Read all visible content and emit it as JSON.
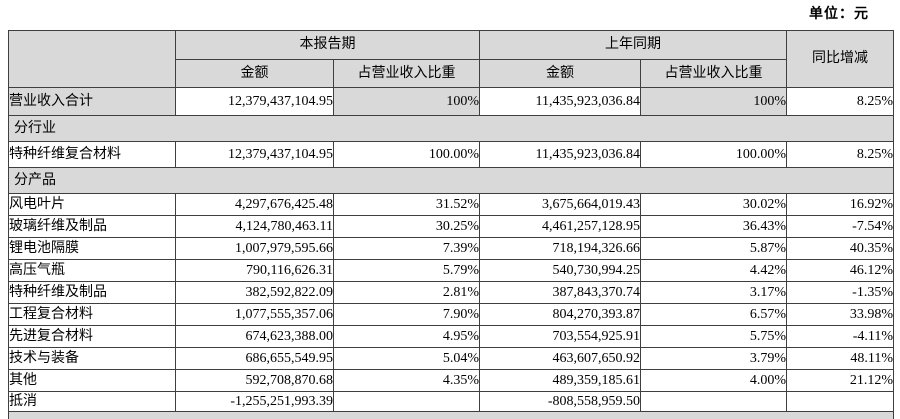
{
  "unit_label": "单位：元",
  "colors": {
    "header_bg": "#d9d9d9",
    "border": "#3f3f3f",
    "page_bg": "#ffffff"
  },
  "table": {
    "col_headers": {
      "corner": "",
      "current_period": "本报告期",
      "prior_period": "上年同期",
      "yoy": "同比增减",
      "amount": "金额",
      "revenue_share": "占营业收入比重"
    },
    "rows": [
      {
        "type": "data",
        "shaded_label": true,
        "shaded_pct": true,
        "label": "营业收入合计",
        "cells": [
          "12,379,437,104.95",
          "100%",
          "11,435,923,036.84",
          "100%",
          "8.25%"
        ]
      },
      {
        "type": "section",
        "label": "分行业"
      },
      {
        "type": "data",
        "label": "特种纤维复合材料",
        "cells": [
          "12,379,437,104.95",
          "100.00%",
          "11,435,923,036.84",
          "100.00%",
          "8.25%"
        ]
      },
      {
        "type": "section",
        "label": "分产品"
      },
      {
        "type": "data",
        "label": "风电叶片",
        "cells": [
          "4,297,676,425.48",
          "31.52%",
          "3,675,664,019.43",
          "30.02%",
          "16.92%"
        ]
      },
      {
        "type": "data",
        "label": "玻璃纤维及制品",
        "cells": [
          "4,124,780,463.11",
          "30.25%",
          "4,461,257,128.95",
          "36.43%",
          "-7.54%"
        ]
      },
      {
        "type": "data",
        "label": "锂电池隔膜",
        "cells": [
          "1,007,979,595.66",
          "7.39%",
          "718,194,326.66",
          "5.87%",
          "40.35%"
        ]
      },
      {
        "type": "data",
        "label": "高压气瓶",
        "cells": [
          "790,116,626.31",
          "5.79%",
          "540,730,994.25",
          "4.42%",
          "46.12%"
        ]
      },
      {
        "type": "data",
        "label": "特种纤维及制品",
        "cells": [
          "382,592,822.09",
          "2.81%",
          "387,843,370.74",
          "3.17%",
          "-1.35%"
        ]
      },
      {
        "type": "data",
        "label": "工程复合材料",
        "cells": [
          "1,077,555,357.06",
          "7.90%",
          "804,270,393.87",
          "6.57%",
          "33.98%"
        ]
      },
      {
        "type": "data",
        "label": "先进复合材料",
        "cells": [
          "674,623,388.00",
          "4.95%",
          "703,554,925.91",
          "5.75%",
          "-4.11%"
        ]
      },
      {
        "type": "data",
        "label": "技术与装备",
        "cells": [
          "686,655,549.95",
          "5.04%",
          "463,607,650.92",
          "3.79%",
          "48.11%"
        ]
      },
      {
        "type": "data",
        "label": "其他",
        "cells": [
          "592,708,870.68",
          "4.35%",
          "489,359,185.61",
          "4.00%",
          "21.12%"
        ]
      },
      {
        "type": "data",
        "label": "抵消",
        "cells": [
          "-1,255,251,993.39",
          "",
          "-808,558,959.50",
          "",
          ""
        ]
      },
      {
        "type": "partial",
        "label": ""
      }
    ]
  }
}
